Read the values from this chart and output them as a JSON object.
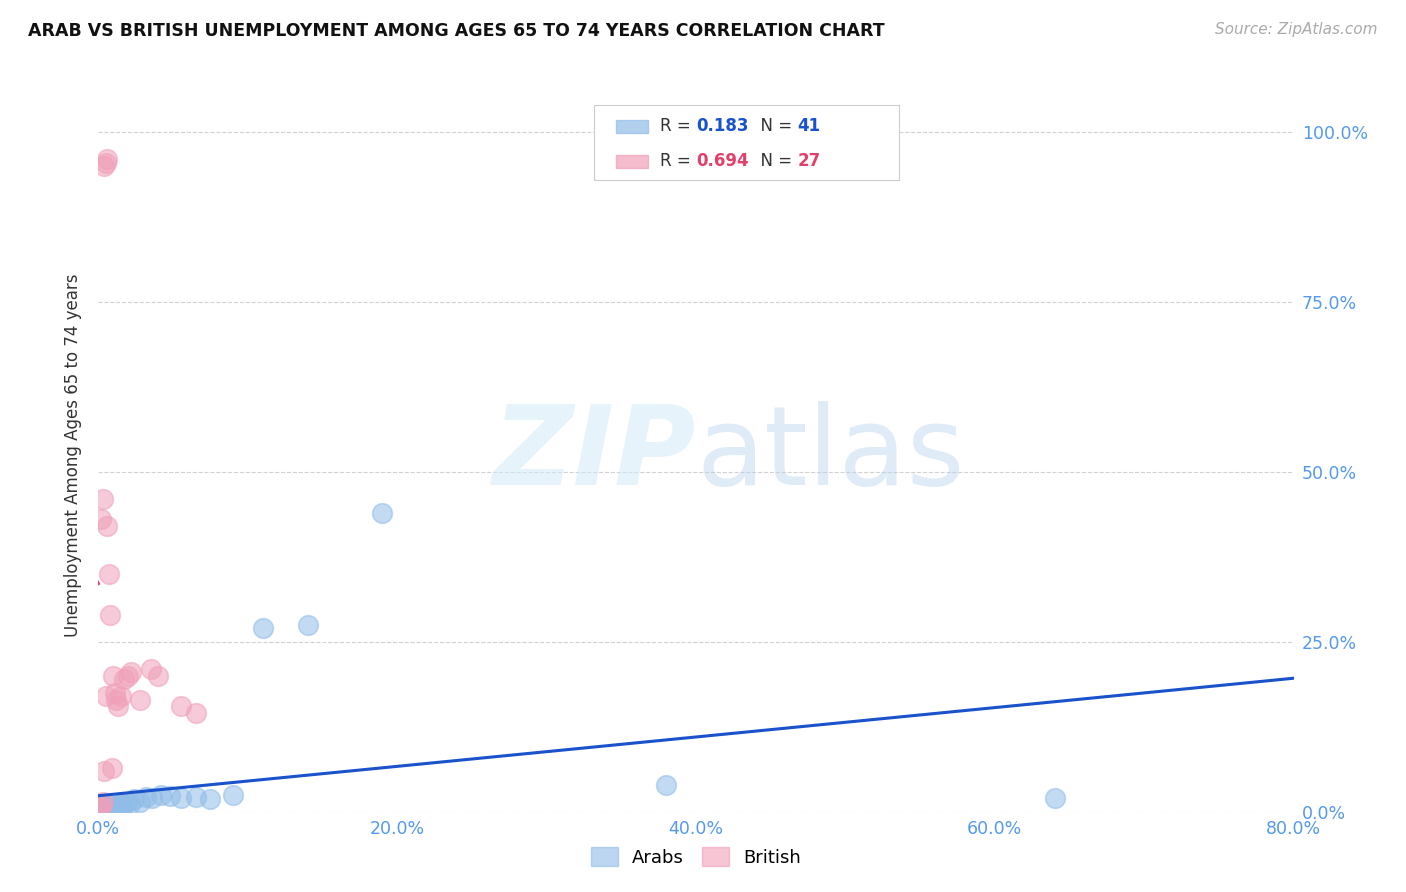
{
  "title": "ARAB VS BRITISH UNEMPLOYMENT AMONG AGES 65 TO 74 YEARS CORRELATION CHART",
  "source": "Source: ZipAtlas.com",
  "ylabel": "Unemployment Among Ages 65 to 74 years",
  "xlim": [
    0.0,
    0.8
  ],
  "ylim": [
    0.0,
    1.05
  ],
  "xticks": [
    0.0,
    0.2,
    0.4,
    0.6,
    0.8
  ],
  "xticklabels": [
    "0.0%",
    "20.0%",
    "40.0%",
    "60.0%",
    "80.0%"
  ],
  "yticks": [
    0.0,
    0.25,
    0.5,
    0.75,
    1.0
  ],
  "yticklabels": [
    "0.0%",
    "25.0%",
    "50.0%",
    "75.0%",
    "100.0%"
  ],
  "arab_color": "#90bce8",
  "british_color": "#f0a0b8",
  "arab_line_color": "#1a52cc",
  "british_line_color": "#e0406a",
  "arab_R": 0.183,
  "arab_N": 41,
  "british_R": 0.694,
  "british_N": 27,
  "background": "#ffffff",
  "arab_x": [
    0.001,
    0.002,
    0.002,
    0.003,
    0.003,
    0.003,
    0.004,
    0.004,
    0.005,
    0.005,
    0.006,
    0.006,
    0.007,
    0.007,
    0.008,
    0.008,
    0.009,
    0.01,
    0.011,
    0.012,
    0.013,
    0.014,
    0.015,
    0.017,
    0.019,
    0.021,
    0.024,
    0.028,
    0.032,
    0.036,
    0.042,
    0.048,
    0.055,
    0.065,
    0.075,
    0.09,
    0.11,
    0.14,
    0.19,
    0.38,
    0.64
  ],
  "arab_y": [
    0.003,
    0.004,
    0.006,
    0.003,
    0.005,
    0.007,
    0.004,
    0.008,
    0.003,
    0.006,
    0.005,
    0.009,
    0.004,
    0.007,
    0.005,
    0.008,
    0.006,
    0.009,
    0.005,
    0.008,
    0.01,
    0.007,
    0.012,
    0.01,
    0.015,
    0.012,
    0.018,
    0.015,
    0.022,
    0.02,
    0.025,
    0.023,
    0.02,
    0.022,
    0.018,
    0.025,
    0.27,
    0.275,
    0.44,
    0.04,
    0.02
  ],
  "british_x": [
    0.001,
    0.002,
    0.002,
    0.003,
    0.003,
    0.004,
    0.004,
    0.005,
    0.005,
    0.006,
    0.006,
    0.007,
    0.008,
    0.009,
    0.01,
    0.011,
    0.012,
    0.013,
    0.015,
    0.017,
    0.02,
    0.022,
    0.028,
    0.035,
    0.04,
    0.055,
    0.065
  ],
  "british_y": [
    0.005,
    0.008,
    0.43,
    0.015,
    0.46,
    0.95,
    0.06,
    0.955,
    0.17,
    0.96,
    0.42,
    0.35,
    0.29,
    0.065,
    0.2,
    0.175,
    0.165,
    0.155,
    0.17,
    0.195,
    0.2,
    0.205,
    0.165,
    0.21,
    0.2,
    0.155,
    0.145
  ]
}
